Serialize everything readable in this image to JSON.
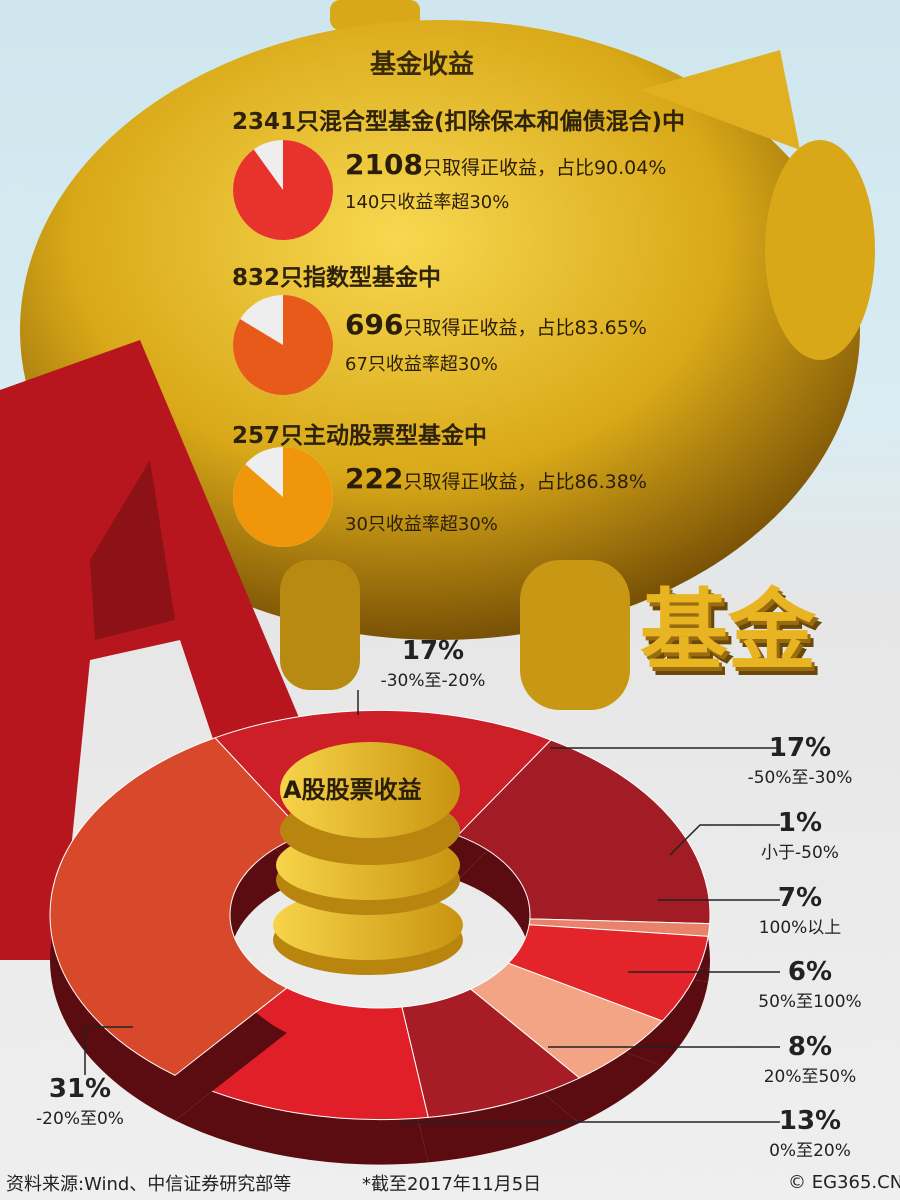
{
  "title": "基金收益",
  "funds": [
    {
      "header": "2341只混合型基金(扣除保本和偏债混合)中",
      "count": "2108",
      "line1": "只取得正收益，占比90.04%",
      "line2": "140只收益率超30%",
      "share": 90.04,
      "color": "#e8332c"
    },
    {
      "header": "832只指数型基金中",
      "count": "696",
      "line1": "只取得正收益，占比83.65%",
      "line2": "67只收益率超30%",
      "share": 83.65,
      "color": "#e85a1a"
    },
    {
      "header": "257只主动股票型基金中",
      "count": "222",
      "line1": "只取得正收益，占比86.38%",
      "line2": "30只收益率超30%",
      "share": 86.38,
      "color": "#f0960a"
    }
  ],
  "decor_text": "基金",
  "chart_data": {
    "type": "pie",
    "title": "A股股票收益",
    "categories": [
      "-30%至-20%",
      "-50%至-30%",
      "小于-50%",
      "100%以上",
      "50%至100%",
      "20%至50%",
      "0%至20%",
      "-20%至0%"
    ],
    "values": [
      17,
      17,
      1,
      7,
      6,
      8,
      13,
      31
    ],
    "labels": [
      "17%",
      "17%",
      "1%",
      "7%",
      "6%",
      "8%",
      "13%",
      "31%"
    ],
    "colors": [
      "#cc1f28",
      "#a11c24",
      "#e8826a",
      "#e3242b",
      "#f2a484",
      "#a81d25",
      "#e11f29",
      "#d8482a"
    ]
  },
  "footer": {
    "source": "资料来源:Wind、中信证券研究部等",
    "date": "*截至2017年11月5日",
    "copyright": "© EG365.CN"
  }
}
